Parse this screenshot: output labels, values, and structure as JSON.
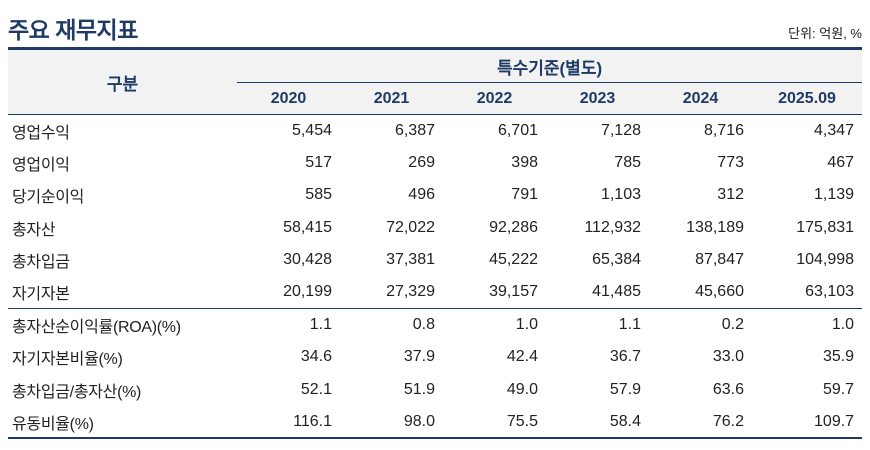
{
  "header": {
    "title": "주요 재무지표",
    "unit": "단위: 억원, %"
  },
  "table": {
    "col_label": "구분",
    "group_header": "특수기준(별도)",
    "years": [
      "2020",
      "2021",
      "2022",
      "2023",
      "2024",
      "2025.09"
    ],
    "sections": [
      {
        "name": "amounts",
        "rows": [
          {
            "label": "영업수익",
            "values": [
              "5,454",
              "6,387",
              "6,701",
              "7,128",
              "8,716",
              "4,347"
            ]
          },
          {
            "label": "영업이익",
            "values": [
              "517",
              "269",
              "398",
              "785",
              "773",
              "467"
            ]
          },
          {
            "label": "당기순이익",
            "values": [
              "585",
              "496",
              "791",
              "1,103",
              "312",
              "1,139"
            ]
          },
          {
            "label": "총자산",
            "values": [
              "58,415",
              "72,022",
              "92,286",
              "112,932",
              "138,189",
              "175,831"
            ]
          },
          {
            "label": "총차입금",
            "values": [
              "30,428",
              "37,381",
              "45,222",
              "65,384",
              "87,847",
              "104,998"
            ]
          },
          {
            "label": "자기자본",
            "values": [
              "20,199",
              "27,329",
              "39,157",
              "41,485",
              "45,660",
              "63,103"
            ]
          }
        ]
      },
      {
        "name": "ratios",
        "rows": [
          {
            "label": "총자산순이익률(ROA)(%)",
            "values": [
              "1.1",
              "0.8",
              "1.0",
              "1.1",
              "0.2",
              "1.0"
            ]
          },
          {
            "label": "자기자본비율(%)",
            "values": [
              "34.6",
              "37.9",
              "42.4",
              "36.7",
              "33.0",
              "35.9"
            ]
          },
          {
            "label": "총차입금/총자산(%)",
            "values": [
              "52.1",
              "51.9",
              "49.0",
              "57.9",
              "63.6",
              "59.7"
            ]
          },
          {
            "label": "유동비율(%)",
            "values": [
              "116.1",
              "98.0",
              "75.5",
              "58.4",
              "76.2",
              "109.7"
            ]
          }
        ]
      }
    ]
  },
  "colors": {
    "accent": "#1f3a64",
    "header_bg": "#f2f2f2",
    "text": "#222222"
  }
}
